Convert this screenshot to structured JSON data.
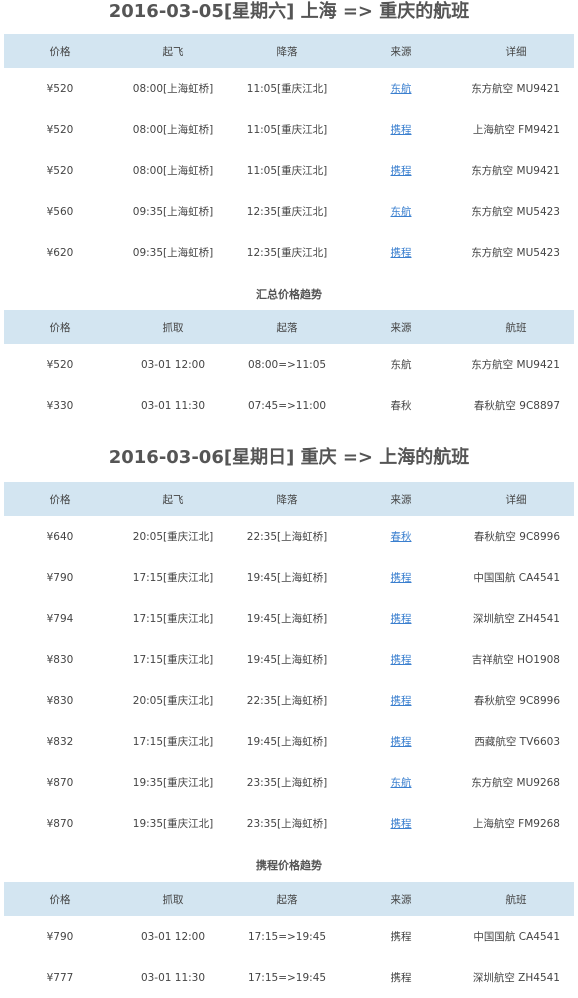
{
  "section1": {
    "title": "2016-03-05[星期六] 上海 => 重庆的航班",
    "headers": [
      "价格",
      "起飞",
      "降落",
      "来源",
      "详细"
    ],
    "rows": [
      {
        "price": "¥520",
        "depart": "08:00[上海虹桥]",
        "arrive": "11:05[重庆江北]",
        "source": "东航",
        "detail": "东方航空 MU9421"
      },
      {
        "price": "¥520",
        "depart": "08:00[上海虹桥]",
        "arrive": "11:05[重庆江北]",
        "source": "携程",
        "detail": "上海航空 FM9421"
      },
      {
        "price": "¥520",
        "depart": "08:00[上海虹桥]",
        "arrive": "11:05[重庆江北]",
        "source": "携程",
        "detail": "东方航空 MU9421"
      },
      {
        "price": "¥560",
        "depart": "09:35[上海虹桥]",
        "arrive": "12:35[重庆江北]",
        "source": "东航",
        "detail": "东方航空 MU5423"
      },
      {
        "price": "¥620",
        "depart": "09:35[上海虹桥]",
        "arrive": "12:35[重庆江北]",
        "source": "携程",
        "detail": "东方航空 MU5423"
      }
    ]
  },
  "trend1": {
    "title": "汇总价格趋势",
    "headers": [
      "价格",
      "抓取",
      "起落",
      "来源",
      "航班"
    ],
    "rows": [
      {
        "price": "¥520",
        "fetched": "03-01 12:00",
        "times": "08:00=>11:05",
        "source": "东航",
        "flight": "东方航空 MU9421"
      },
      {
        "price": "¥330",
        "fetched": "03-01 11:30",
        "times": "07:45=>11:00",
        "source": "春秋",
        "flight": "春秋航空 9C8897"
      }
    ]
  },
  "section2": {
    "title": "2016-03-06[星期日] 重庆 => 上海的航班",
    "headers": [
      "价格",
      "起飞",
      "降落",
      "来源",
      "详细"
    ],
    "rows": [
      {
        "price": "¥640",
        "depart": "20:05[重庆江北]",
        "arrive": "22:35[上海虹桥]",
        "source": "春秋",
        "detail": "春秋航空 9C8996"
      },
      {
        "price": "¥790",
        "depart": "17:15[重庆江北]",
        "arrive": "19:45[上海虹桥]",
        "source": "携程",
        "detail": "中国国航 CA4541"
      },
      {
        "price": "¥794",
        "depart": "17:15[重庆江北]",
        "arrive": "19:45[上海虹桥]",
        "source": "携程",
        "detail": "深圳航空 ZH4541"
      },
      {
        "price": "¥830",
        "depart": "17:15[重庆江北]",
        "arrive": "19:45[上海虹桥]",
        "source": "携程",
        "detail": "吉祥航空 HO1908"
      },
      {
        "price": "¥830",
        "depart": "20:05[重庆江北]",
        "arrive": "22:35[上海虹桥]",
        "source": "携程",
        "detail": "春秋航空 9C8996"
      },
      {
        "price": "¥832",
        "depart": "17:15[重庆江北]",
        "arrive": "19:45[上海虹桥]",
        "source": "携程",
        "detail": "西藏航空 TV6603"
      },
      {
        "price": "¥870",
        "depart": "19:35[重庆江北]",
        "arrive": "23:35[上海虹桥]",
        "source": "东航",
        "detail": "东方航空 MU9268"
      },
      {
        "price": "¥870",
        "depart": "19:35[重庆江北]",
        "arrive": "23:35[上海虹桥]",
        "source": "携程",
        "detail": "上海航空 FM9268"
      }
    ]
  },
  "trend2": {
    "title": "携程价格趋势",
    "headers": [
      "价格",
      "抓取",
      "起落",
      "来源",
      "航班"
    ],
    "rows": [
      {
        "price": "¥790",
        "fetched": "03-01 12:00",
        "times": "17:15=>19:45",
        "source": "携程",
        "flight": "中国国航 CA4541"
      },
      {
        "price": "¥777",
        "fetched": "03-01 11:30",
        "times": "17:15=>19:45",
        "source": "携程",
        "flight": "深圳航空 ZH4541"
      }
    ]
  },
  "colors": {
    "header_bg": "#d3e5f1",
    "link": "#3a7fcf",
    "text": "#444444",
    "title": "#555555"
  }
}
